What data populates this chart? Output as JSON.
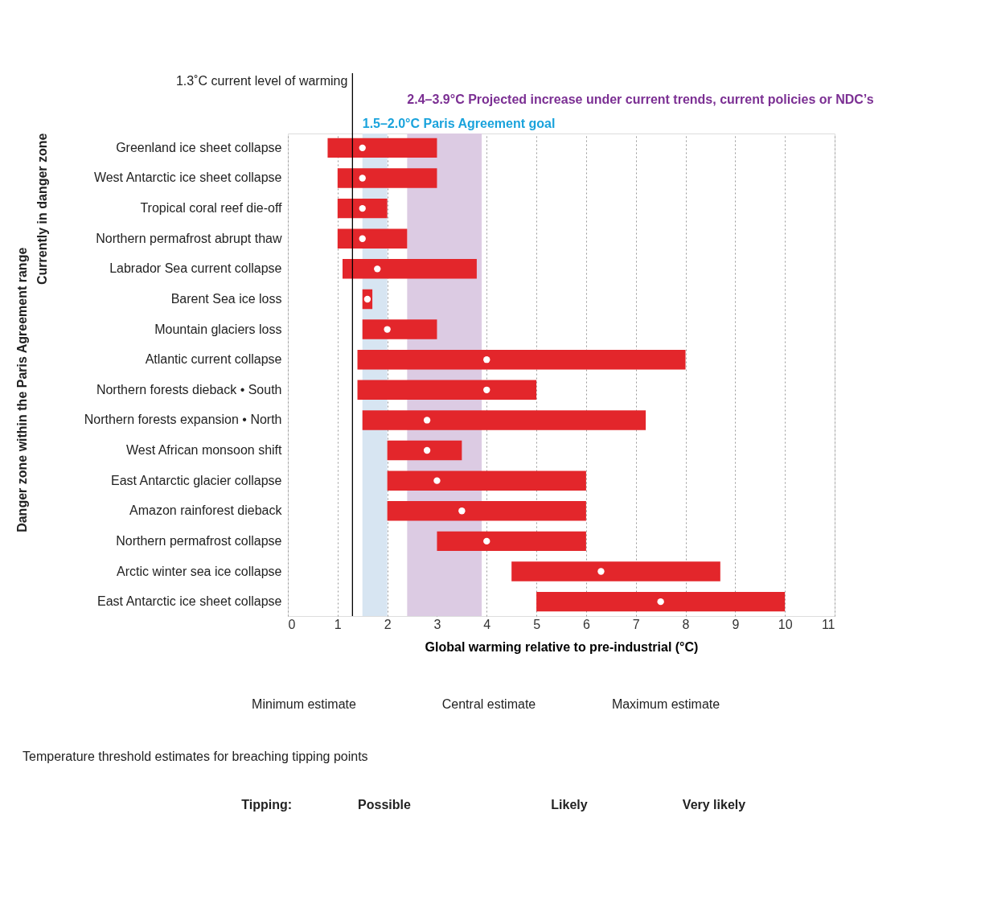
{
  "chart_data": {
    "type": "bar",
    "orientation": "horizontal",
    "categories": [
      "Greenland ice sheet collapse",
      "West Antarctic ice sheet collapse",
      "Tropical coral reef die-off",
      "Northern permafrost abrupt thaw",
      "Labrador Sea current collapse",
      "Barent Sea ice loss",
      "Mountain glaciers loss",
      "Atlantic current collapse",
      "Northern forests dieback • South",
      "Northern forests expansion • North",
      "West African monsoon shift",
      "East Antarctic glacier collapse",
      "Amazon rainforest dieback",
      "Northern permafrost collapse",
      "Arctic winter sea ice collapse",
      "East Antarctic ice sheet collapse"
    ],
    "series": [
      {
        "color": "#e3262b",
        "base": [
          0.8,
          1.0,
          1.0,
          1.0,
          1.1,
          1.5,
          1.5,
          1.4,
          1.4,
          1.5,
          2.0,
          2.0,
          2.0,
          3.0,
          4.5,
          5.0
        ],
        "values": [
          2.2,
          2.0,
          1.0,
          1.4,
          2.7,
          0.2,
          1.5,
          6.6,
          3.6,
          5.7,
          1.5,
          4.0,
          4.0,
          3.0,
          4.2,
          5.0
        ]
      },
      {
        "type": "scatter",
        "marker": "circle",
        "color": "#ffffff",
        "values": [
          1.5,
          1.5,
          1.5,
          1.5,
          1.8,
          1.6,
          2.0,
          4.0,
          4.0,
          2.8,
          2.8,
          3.0,
          3.5,
          4.0,
          6.3,
          7.5
        ]
      }
    ],
    "xlabel": "Global warming relative to pre-industrial (°C)",
    "xlim": [
      0,
      11
    ],
    "xticks": [
      0,
      1,
      2,
      3,
      4,
      5,
      6,
      7,
      8,
      9,
      10,
      11
    ],
    "grid": "x",
    "ref_lines": [
      {
        "axis": "x",
        "value": 1.3,
        "label": "1.3˚C current level of warming",
        "color": "#000000"
      }
    ],
    "bands": [
      {
        "axis": "x",
        "from": 1.5,
        "to": 2.0,
        "label": "1.5–2.0°C Paris Agreement goal",
        "color": "#d7e5f2"
      },
      {
        "axis": "x",
        "from": 2.4,
        "to": 3.9,
        "label": "2.4–3.9°C Projected increase under current trends, current policies or NDC’s",
        "color": "#dccbe3"
      }
    ],
    "annotations": [
      "Currently in danger zone",
      "Danger zone within the Paris Agreement range",
      "Temperature threshold estimates for breaching tipping points",
      "Minimum estimate",
      "Central estimate",
      "Maximum estimate",
      "Tipping:",
      "Possible",
      "Likely",
      "Very likely"
    ]
  }
}
